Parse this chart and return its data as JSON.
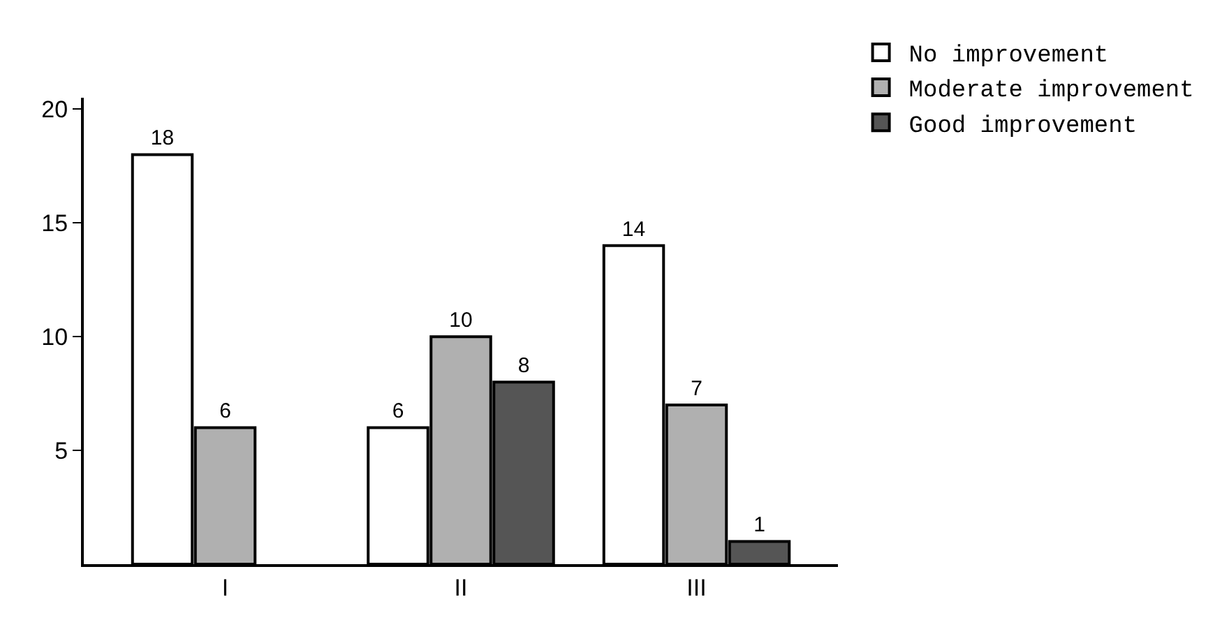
{
  "chart_data": {
    "type": "bar",
    "categories": [
      "I",
      "II",
      "III"
    ],
    "series": [
      {
        "name": "No improvement",
        "color": "#ffffff",
        "values": [
          18,
          6,
          14
        ]
      },
      {
        "name": "Moderate improvement",
        "color": "#b0b0b0",
        "values": [
          6,
          10,
          7
        ]
      },
      {
        "name": "Good improvement",
        "color": "#555555",
        "values": [
          null,
          8,
          1
        ]
      }
    ],
    "ylim": [
      0,
      20.5
    ],
    "yticks": [
      5,
      10,
      15,
      20
    ],
    "data_labels": true,
    "legend": "top right",
    "grid": false
  }
}
